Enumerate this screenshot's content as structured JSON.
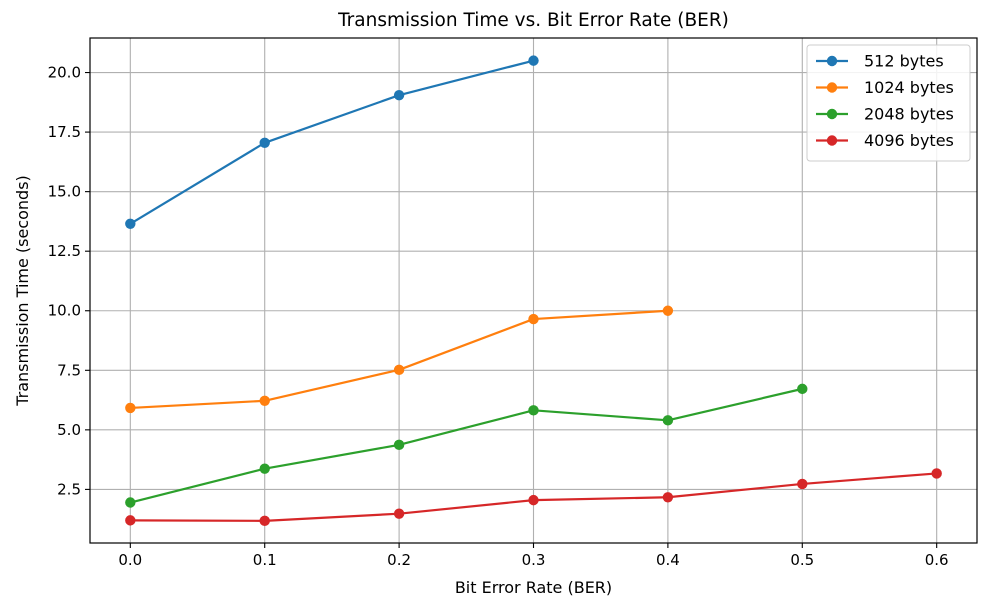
{
  "chart_data": {
    "type": "line",
    "title": "Transmission Time vs. Bit Error Rate (BER)",
    "xlabel": "Bit Error Rate (BER)",
    "ylabel": "Transmission Time (seconds)",
    "xlim": [
      -0.03,
      0.63
    ],
    "ylim": [
      0.25,
      21.45
    ],
    "x_ticks": [
      0.0,
      0.1,
      0.2,
      0.3,
      0.4,
      0.5,
      0.6
    ],
    "x_tick_labels": [
      "0.0",
      "0.1",
      "0.2",
      "0.3",
      "0.4",
      "0.5",
      "0.6"
    ],
    "y_ticks": [
      2.5,
      5.0,
      7.5,
      10.0,
      12.5,
      15.0,
      17.5,
      20.0
    ],
    "y_tick_labels": [
      "2.5",
      "5.0",
      "7.5",
      "10.0",
      "12.5",
      "15.0",
      "17.5",
      "20.0"
    ],
    "grid": true,
    "legend_position": "top-right",
    "series": [
      {
        "name": "512 bytes",
        "color": "#1f77b4",
        "x": [
          0.0,
          0.1,
          0.2,
          0.3
        ],
        "y": [
          13.65,
          17.05,
          19.05,
          20.5
        ]
      },
      {
        "name": "1024 bytes",
        "color": "#ff7f0e",
        "x": [
          0.0,
          0.1,
          0.2,
          0.3,
          0.4
        ],
        "y": [
          5.92,
          6.22,
          7.52,
          9.65,
          10.0
        ]
      },
      {
        "name": "2048 bytes",
        "color": "#2ca02c",
        "x": [
          0.0,
          0.1,
          0.2,
          0.3,
          0.4,
          0.5
        ],
        "y": [
          1.95,
          3.37,
          4.37,
          5.82,
          5.4,
          6.72
        ]
      },
      {
        "name": "4096 bytes",
        "color": "#d62728",
        "x": [
          0.0,
          0.1,
          0.2,
          0.3,
          0.4,
          0.5,
          0.6
        ],
        "y": [
          1.2,
          1.18,
          1.48,
          2.05,
          2.17,
          2.73,
          3.17
        ]
      }
    ]
  }
}
